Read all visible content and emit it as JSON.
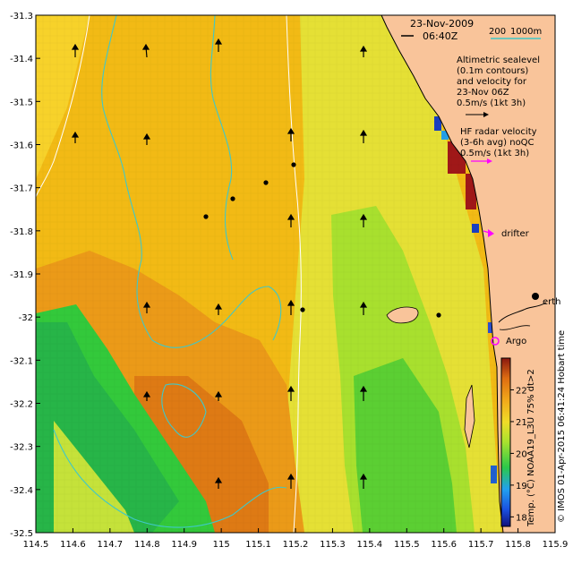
{
  "map": {
    "timestamp_date": "23-Nov-2009",
    "timestamp_time": "06:40Z",
    "depth_legend": {
      "label_200": "200",
      "label_1000": "1000m"
    },
    "altimetry_note": [
      "Altimetric sealevel",
      "(0.1m contours)",
      "and velocity for",
      "23-Nov 06Z",
      "0.5m/s (1kt 3h)"
    ],
    "hf_radar_note": [
      "HF radar velocity",
      "(3-6h avg) noQC",
      "0.5m/s (1kt 3h)"
    ],
    "drifter_label": "drifter",
    "argo_label": "Argo",
    "city_label": "erth",
    "credit": "© IMOS 01-Apr-2015 06:41:24 Hobart time",
    "colorbar_label": "Temp. (°C) NOAA19_L3U 75% dt>2",
    "colors": {
      "land": "#f9c49a",
      "contour": "#3fc8c8",
      "argo": "#ff00ff",
      "drifter": "#ff00ff"
    }
  },
  "chart_data": {
    "type": "heatmap",
    "xlabel": "",
    "ylabel": "",
    "xlim": [
      114.5,
      115.9
    ],
    "ylim": [
      -32.5,
      -31.3
    ],
    "x_ticks": [
      "114.5",
      "114.6",
      "114.7",
      "114.8",
      "114.9",
      "115",
      "115.1",
      "115.2",
      "115.3",
      "115.4",
      "115.5",
      "115.6",
      "115.7",
      "115.8",
      "115.9"
    ],
    "y_ticks": [
      "-31.3",
      "-31.4",
      "-31.5",
      "-31.6",
      "-31.7",
      "-31.8",
      "-31.9",
      "-32",
      "-32.1",
      "-32.2",
      "-32.3",
      "-32.4",
      "-32.5"
    ],
    "colorbar": {
      "ticks": [
        "18",
        "19",
        "20",
        "21",
        "22"
      ],
      "range": [
        17.7,
        23.0
      ]
    }
  }
}
